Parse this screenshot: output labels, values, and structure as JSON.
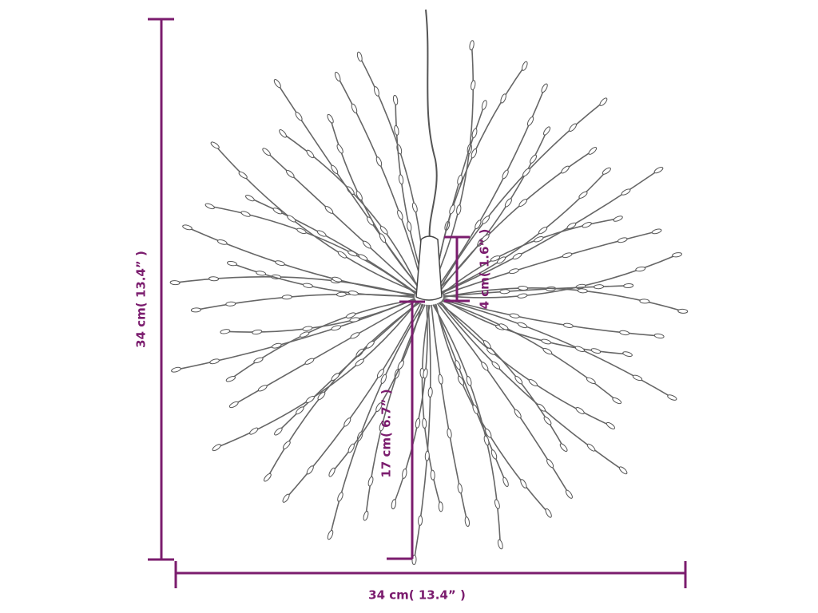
{
  "dimensions": {
    "height": "34 cm( 13.4” )",
    "width": "34 cm( 13.4” )",
    "ray_length": "17 cm( 6.7” )",
    "cap_height": "4 cm( 1.6” )"
  }
}
